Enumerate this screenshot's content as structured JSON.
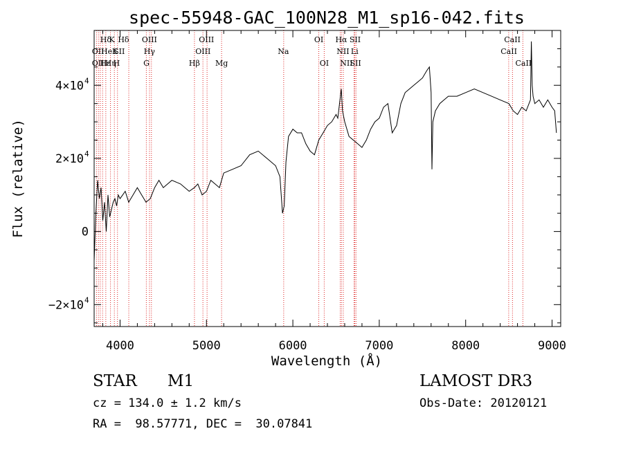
{
  "chart_data": {
    "type": "line",
    "title": "spec-55948-GAC_100N28_M1_sp16-042.fits",
    "xlabel": "Wavelength (Å)",
    "ylabel": "Flux (relative)",
    "xlim": [
      3700,
      9100
    ],
    "ylim": [
      -26000,
      55000
    ],
    "grid": false,
    "x_ticks": [
      {
        "value": 4000,
        "label": "4000"
      },
      {
        "value": 5000,
        "label": "5000"
      },
      {
        "value": 6000,
        "label": "6000"
      },
      {
        "value": 7000,
        "label": "7000"
      },
      {
        "value": 8000,
        "label": "8000"
      },
      {
        "value": 9000,
        "label": "9000"
      }
    ],
    "y_ticks": [
      {
        "value": -20000,
        "label": "−2×10",
        "exp": "4"
      },
      {
        "value": 0,
        "label": "0",
        "exp": ""
      },
      {
        "value": 20000,
        "label": "2×10",
        "exp": "4"
      },
      {
        "value": 40000,
        "label": "4×10",
        "exp": "4"
      }
    ],
    "series": [
      {
        "color": "#000000",
        "x": [
          3700,
          3720,
          3740,
          3760,
          3780,
          3800,
          3820,
          3840,
          3860,
          3880,
          3900,
          3920,
          3940,
          3960,
          3980,
          4000,
          4030,
          4060,
          4100,
          4150,
          4200,
          4250,
          4300,
          4350,
          4400,
          4450,
          4500,
          4600,
          4700,
          4800,
          4860,
          4900,
          4950,
          5000,
          5050,
          5100,
          5150,
          5200,
          5300,
          5400,
          5500,
          5600,
          5700,
          5800,
          5850,
          5880,
          5900,
          5920,
          5950,
          6000,
          6050,
          6100,
          6150,
          6200,
          6250,
          6300,
          6350,
          6400,
          6450,
          6500,
          6520,
          6540,
          6560,
          6575,
          6600,
          6650,
          6700,
          6750,
          6800,
          6850,
          6900,
          6950,
          7000,
          7050,
          7100,
          7150,
          7200,
          7250,
          7300,
          7350,
          7400,
          7450,
          7500,
          7550,
          7580,
          7600,
          7610,
          7620,
          7650,
          7700,
          7750,
          7800,
          7900,
          8000,
          8100,
          8200,
          8300,
          8400,
          8500,
          8550,
          8600,
          8650,
          8700,
          8750,
          8760,
          8770,
          8780,
          8800,
          8850,
          8900,
          8950,
          9000,
          9030,
          9050
        ],
        "y": [
          -8000,
          5000,
          14000,
          9000,
          12000,
          3000,
          8000,
          0,
          10000,
          4000,
          6000,
          8000,
          9000,
          7000,
          10000,
          9000,
          10000,
          11000,
          8000,
          10000,
          12000,
          10000,
          8000,
          9000,
          12000,
          14000,
          12000,
          14000,
          13000,
          11000,
          12000,
          13000,
          10000,
          11000,
          14000,
          13000,
          12000,
          16000,
          17000,
          18000,
          21000,
          22000,
          20000,
          18000,
          15000,
          5000,
          7000,
          19000,
          26000,
          28000,
          27000,
          27000,
          24000,
          22000,
          21000,
          25000,
          27000,
          29000,
          30000,
          32000,
          31000,
          35000,
          39000,
          33000,
          30000,
          26000,
          25000,
          24000,
          23000,
          25000,
          28000,
          30000,
          31000,
          34000,
          35000,
          27000,
          29000,
          35000,
          38000,
          39000,
          40000,
          41000,
          42000,
          44000,
          45000,
          38000,
          17000,
          30000,
          33000,
          35000,
          36000,
          37000,
          37000,
          38000,
          39000,
          38000,
          37000,
          36000,
          35000,
          33000,
          32000,
          34000,
          33000,
          36000,
          52000,
          40000,
          37000,
          35000,
          36000,
          34000,
          36000,
          34000,
          33000,
          27000
        ]
      }
    ],
    "line_labels": [
      {
        "row": 1,
        "x": 3835,
        "text": "Hδ"
      },
      {
        "row": 1,
        "x": 3905,
        "text": "K"
      },
      {
        "row": 1,
        "x": 4040,
        "text": "Hδ"
      },
      {
        "row": 1,
        "x": 4340,
        "text": "OIII"
      },
      {
        "row": 1,
        "x": 5000,
        "text": "OIII"
      },
      {
        "row": 1,
        "x": 6300,
        "text": "OI"
      },
      {
        "row": 1,
        "x": 6560,
        "text": "Hα"
      },
      {
        "row": 1,
        "x": 6720,
        "text": "SII"
      },
      {
        "row": 1,
        "x": 8540,
        "text": "CaII"
      },
      {
        "row": 2,
        "x": 3745,
        "text": "OII"
      },
      {
        "row": 2,
        "x": 3845,
        "text": "He"
      },
      {
        "row": 2,
        "x": 3940,
        "text": "K"
      },
      {
        "row": 2,
        "x": 3990,
        "text": "SII"
      },
      {
        "row": 2,
        "x": 4340,
        "text": "Hγ"
      },
      {
        "row": 2,
        "x": 4960,
        "text": "OIII"
      },
      {
        "row": 2,
        "x": 5890,
        "text": "Na"
      },
      {
        "row": 2,
        "x": 6580,
        "text": "NII"
      },
      {
        "row": 2,
        "x": 6715,
        "text": "Li"
      },
      {
        "row": 2,
        "x": 8500,
        "text": "CaII"
      },
      {
        "row": 3,
        "x": 3745,
        "text": "OII"
      },
      {
        "row": 3,
        "x": 3830,
        "text": "Hε"
      },
      {
        "row": 3,
        "x": 3890,
        "text": "Hη"
      },
      {
        "row": 3,
        "x": 3960,
        "text": "H"
      },
      {
        "row": 3,
        "x": 4305,
        "text": "G"
      },
      {
        "row": 3,
        "x": 4861,
        "text": "Hβ"
      },
      {
        "row": 3,
        "x": 5175,
        "text": "Mg"
      },
      {
        "row": 3,
        "x": 6363,
        "text": "OI"
      },
      {
        "row": 3,
        "x": 6620,
        "text": "NII"
      },
      {
        "row": 3,
        "x": 6725,
        "text": "SII"
      },
      {
        "row": 3,
        "x": 8670,
        "text": "CaII"
      }
    ],
    "line_markers": [
      3727,
      3750,
      3771,
      3798,
      3835,
      3889,
      3934,
      3970,
      4101,
      4304,
      4341,
      4363,
      4861,
      4959,
      5007,
      5175,
      5894,
      6300,
      6363,
      6548,
      6563,
      6584,
      6708,
      6717,
      6731,
      8498,
      8542,
      8662
    ]
  },
  "info": {
    "class": "STAR",
    "subclass": "M1",
    "survey": "LAMOST DR3",
    "cz": "cz = 134.0 ± 1.2 km/s",
    "obs_date": "Obs-Date: 20120121",
    "radec": "RA =  98.57771, DEC =  30.07841"
  }
}
